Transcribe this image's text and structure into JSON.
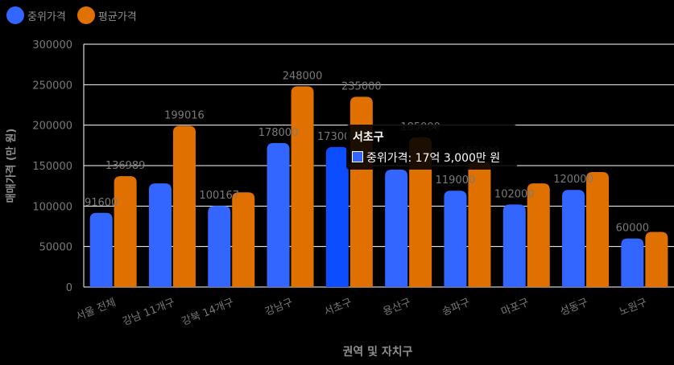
{
  "legend": [
    {
      "label": "중위가격",
      "color": "#3366ff"
    },
    {
      "label": "평균가격",
      "color": "#e07000"
    }
  ],
  "tooltip": {
    "title": "서초구",
    "label": "중위가격: 17억 3,000만 원",
    "color": "#3366ff"
  },
  "chart_data": {
    "type": "bar",
    "xlabel": "권역 및 자치구",
    "ylabel": "매매가격 (만 원)",
    "ylim": [
      0,
      300000
    ],
    "yticks": [
      "0",
      "50000",
      "100000",
      "150000",
      "200000",
      "250000",
      "300000"
    ],
    "categories": [
      "서울 전체",
      "강남 11개구",
      "강북 14개구",
      "강남구",
      "서초구",
      "용산구",
      "송파구",
      "마포구",
      "성동구",
      "노원구"
    ],
    "series": [
      {
        "name": "중위가격",
        "color": "#3366ff",
        "highlight_color": "#0b4dff",
        "values": [
          91600,
          128000,
          100167,
          178000,
          173000,
          145000,
          119000,
          102000,
          120000,
          60000
        ],
        "labels": [
          "91600",
          "",
          "100167",
          "178000",
          "173000",
          "",
          "119000",
          "102000",
          "120000",
          "60000"
        ]
      },
      {
        "name": "평균가격",
        "color": "#e07000",
        "values": [
          136989,
          199016,
          117000,
          248000,
          235000,
          185000,
          155000,
          128000,
          142000,
          68000
        ],
        "labels": [
          "136989",
          "199016",
          "",
          "248000",
          "235000",
          "185000",
          "155000",
          "",
          "",
          ""
        ]
      }
    ],
    "highlight_index": 4,
    "grid": true,
    "legend_position": "top-left"
  }
}
